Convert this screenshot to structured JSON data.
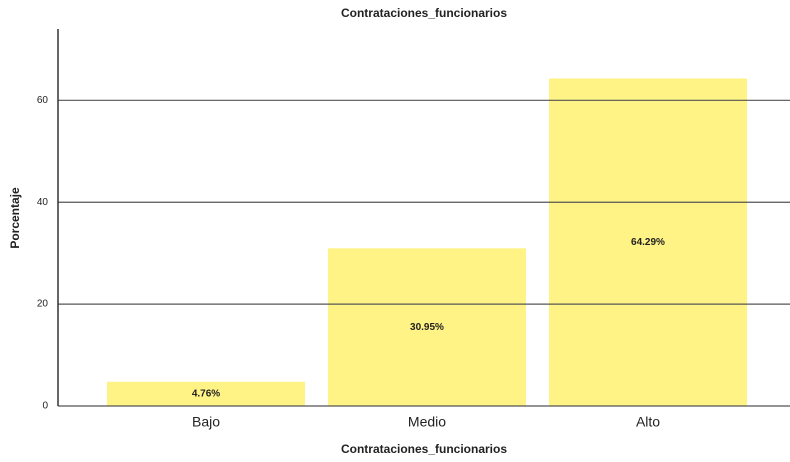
{
  "chart_data": {
    "type": "bar",
    "title": "Contrataciones_funcionarios",
    "x_label": "Contrataciones_funcionarios",
    "y_label": "Porcentaje",
    "categories": [
      "Bajo",
      "Medio",
      "Alto"
    ],
    "values": [
      4.76,
      30.95,
      64.29
    ],
    "value_labels": [
      "4.76%",
      "30.95%",
      "64.29%"
    ],
    "color": "#fff385",
    "ylim": [
      0,
      74
    ],
    "yticks": [
      0,
      20,
      40,
      60
    ],
    "grid": true
  }
}
